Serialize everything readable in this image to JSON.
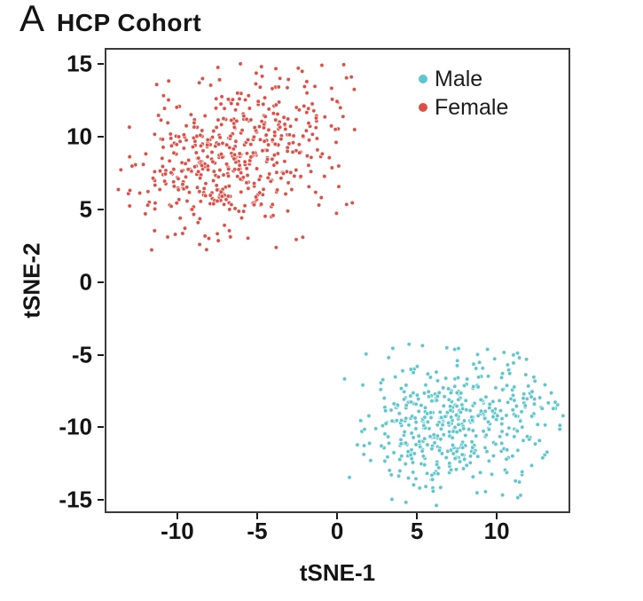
{
  "panel_label": "A",
  "title": "HCP Cohort",
  "chart_data": {
    "type": "scatter",
    "title": "HCP Cohort",
    "xlabel": "tSNE-1",
    "ylabel": "tSNE-2",
    "xlim": [
      -14.55,
      14.6
    ],
    "ylim": [
      -15.9,
      16.1
    ],
    "x_ticks": [
      -10,
      -5,
      0,
      5,
      10
    ],
    "y_ticks": [
      15,
      10,
      5,
      0,
      -5,
      -10,
      -15
    ],
    "grid": false,
    "legend": {
      "position": "top-right-inside",
      "items": [
        {
          "label": "Male",
          "color": "#5EC6CC"
        },
        {
          "label": "Female",
          "color": "#DC4F46"
        }
      ]
    },
    "series": [
      {
        "name": "Female",
        "color": "#DC4F46",
        "n": 520,
        "center": [
          -6.4,
          8.8
        ],
        "sd": [
          3.2,
          2.9
        ],
        "corr": 0.32,
        "xrange": [
          -13.9,
          1.2
        ],
        "yrange": [
          2.2,
          15.3
        ],
        "seed": 11
      },
      {
        "name": "Male",
        "color": "#5EC6CC",
        "n": 480,
        "center": [
          7.5,
          -9.5
        ],
        "sd": [
          3.0,
          2.4
        ],
        "corr": 0.12,
        "xrange": [
          0.4,
          14.35
        ],
        "yrange": [
          -15.45,
          -4.2
        ],
        "seed": 29
      }
    ],
    "point_radius": 2.3,
    "point_stroke": "#ffffff",
    "point_stroke_opacity": 0.75,
    "point_stroke_width": 0.9
  },
  "colors": {
    "plot_border": "#3b3b3b",
    "tick": "#1a1a1a",
    "text": "#141414",
    "background": "#ffffff"
  }
}
